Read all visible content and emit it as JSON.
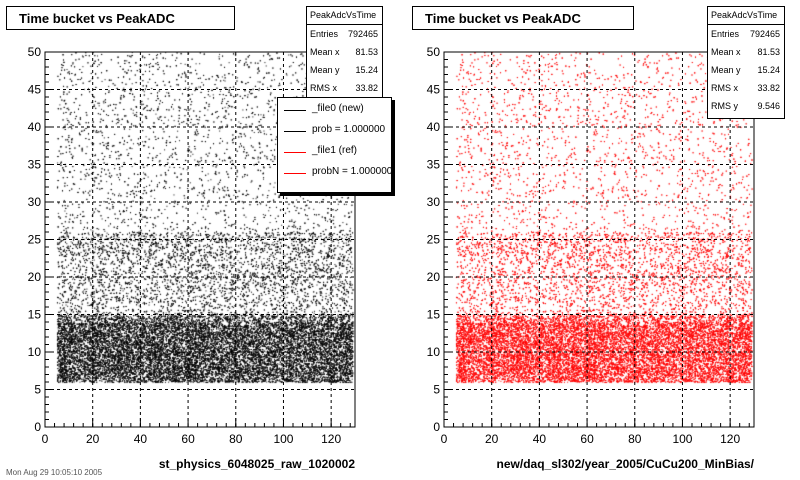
{
  "chart_data": [
    {
      "type": "scatter",
      "title": "Time bucket vs PeakADC",
      "xlabel": "st_physics_6048025_raw_1020002",
      "ylabel": "",
      "xlim": [
        0,
        130
      ],
      "ylim": [
        0,
        50
      ],
      "xticks": [
        0,
        20,
        40,
        60,
        80,
        100,
        120
      ],
      "yticks": [
        0,
        5,
        10,
        15,
        20,
        25,
        30,
        35,
        40,
        45,
        50
      ],
      "grid": true,
      "color": "#000000",
      "stats": {
        "name": "PeakAdcVsTime",
        "rows": [
          {
            "label": "Entries",
            "value": "792465"
          },
          {
            "label": "Mean x",
            "value": "81.53"
          },
          {
            "label": "Mean y",
            "value": "15.24"
          },
          {
            "label": "RMS x",
            "value": "33.82"
          }
        ]
      },
      "legend": [
        {
          "label": "_file0 (new)",
          "color": "#000000"
        },
        {
          "label": "prob = 1.000000",
          "color": "#000000"
        },
        {
          "label": "_file1 (ref)",
          "color": "#ff0000"
        },
        {
          "label": "probN = 1.000000",
          "color": "#ff0000"
        }
      ],
      "legend_position": "top-right"
    },
    {
      "type": "scatter",
      "title": "Time bucket vs PeakADC",
      "xlabel": "new/daq_sl302/year_2005/CuCu200_MinBias/",
      "ylabel": "",
      "xlim": [
        0,
        130
      ],
      "ylim": [
        0,
        50
      ],
      "xticks": [
        0,
        20,
        40,
        60,
        80,
        100,
        120
      ],
      "yticks": [
        0,
        5,
        10,
        15,
        20,
        25,
        30,
        35,
        40,
        45,
        50
      ],
      "grid": true,
      "color": "#ff0000",
      "stats": {
        "name": "PeakAdcVsTime",
        "rows": [
          {
            "label": "Entries",
            "value": "792465"
          },
          {
            "label": "Mean x",
            "value": "81.53"
          },
          {
            "label": "Mean y",
            "value": "15.24"
          },
          {
            "label": "RMS x",
            "value": "33.82"
          },
          {
            "label": "RMS y",
            "value": "9.546"
          }
        ]
      }
    }
  ],
  "footer": "Mon Aug 29 10:05:10 2005"
}
